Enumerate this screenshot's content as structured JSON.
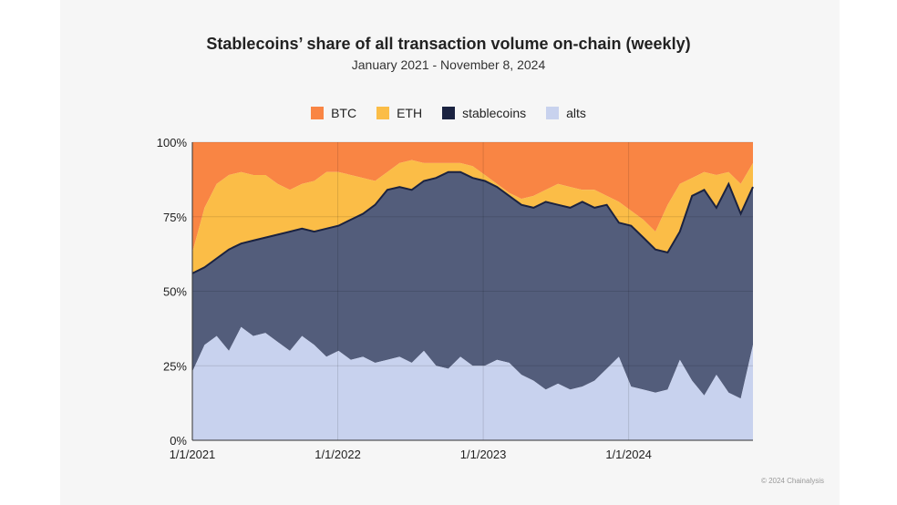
{
  "title": "Stablecoins’ share of all transaction volume on-chain (weekly)",
  "subtitle": "January 2021 - November 8, 2024",
  "credit": "© 2024 Chainalysis",
  "colors": {
    "btc": "#f98544",
    "eth": "#fbbd47",
    "stablecoins": "#535d7b",
    "stablecoins_line": "#1a2240",
    "alts": "#c8d2ee",
    "grid": "#d0d0d0"
  },
  "chart_data": {
    "type": "area",
    "stacked": true,
    "y_format": "percent",
    "ylim": [
      0,
      100
    ],
    "yticks": [
      "0%",
      "25%",
      "50%",
      "75%",
      "100%"
    ],
    "xticks": [
      "1/1/2021",
      "1/1/2022",
      "1/1/2023",
      "1/1/2024"
    ],
    "x_range": [
      "2021-01-01",
      "2024-11-08"
    ],
    "legend": "top",
    "grid": true,
    "x": [
      "2021-01",
      "2021-02",
      "2021-03",
      "2021-04",
      "2021-05",
      "2021-06",
      "2021-07",
      "2021-08",
      "2021-09",
      "2021-10",
      "2021-11",
      "2021-12",
      "2022-01",
      "2022-02",
      "2022-03",
      "2022-04",
      "2022-05",
      "2022-06",
      "2022-07",
      "2022-08",
      "2022-09",
      "2022-10",
      "2022-11",
      "2022-12",
      "2023-01",
      "2023-02",
      "2023-03",
      "2023-04",
      "2023-05",
      "2023-06",
      "2023-07",
      "2023-08",
      "2023-09",
      "2023-10",
      "2023-11",
      "2023-12",
      "2024-01",
      "2024-02",
      "2024-03",
      "2024-04",
      "2024-05",
      "2024-06",
      "2024-07",
      "2024-08",
      "2024-09",
      "2024-10",
      "2024-11"
    ],
    "series": [
      {
        "name": "alts",
        "values": [
          23,
          32,
          35,
          30,
          38,
          35,
          36,
          33,
          30,
          35,
          32,
          28,
          30,
          27,
          28,
          26,
          27,
          28,
          26,
          30,
          25,
          24,
          28,
          25,
          25,
          27,
          26,
          22,
          20,
          17,
          19,
          17,
          18,
          20,
          24,
          28,
          18,
          17,
          16,
          17,
          27,
          20,
          15,
          22,
          16,
          14,
          32
        ]
      },
      {
        "name": "stablecoins",
        "values": [
          56,
          58,
          61,
          64,
          66,
          67,
          68,
          69,
          70,
          71,
          70,
          71,
          72,
          74,
          76,
          79,
          84,
          85,
          84,
          87,
          88,
          90,
          90,
          88,
          87,
          85,
          82,
          79,
          78,
          80,
          79,
          78,
          80,
          78,
          79,
          73,
          72,
          68,
          64,
          63,
          70,
          82,
          84,
          78,
          86,
          76,
          85
        ]
      },
      {
        "name": "ETH",
        "values": [
          63,
          78,
          86,
          89,
          90,
          89,
          89,
          86,
          84,
          86,
          87,
          90,
          90,
          89,
          88,
          87,
          90,
          93,
          94,
          93,
          93,
          93,
          93,
          92,
          89,
          86,
          83,
          81,
          82,
          84,
          86,
          85,
          84,
          84,
          82,
          80,
          77,
          74,
          70,
          79,
          86,
          88,
          90,
          89,
          90,
          86,
          93
        ]
      },
      {
        "name": "BTC",
        "values": [
          100,
          100,
          100,
          100,
          100,
          100,
          100,
          100,
          100,
          100,
          100,
          100,
          100,
          100,
          100,
          100,
          100,
          100,
          100,
          100,
          100,
          100,
          100,
          100,
          100,
          100,
          100,
          100,
          100,
          100,
          100,
          100,
          100,
          100,
          100,
          100,
          100,
          100,
          100,
          100,
          100,
          100,
          100,
          100,
          100,
          100,
          100
        ]
      }
    ],
    "note_values": "Series values are cumulative stack tops (%) read from the chart: alts band 0–alts, stablecoins band alts–stablecoins, ETH band stablecoins–ETH, BTC band ETH–100."
  },
  "legend_items": [
    {
      "label": "BTC",
      "color": "#f98544"
    },
    {
      "label": "ETH",
      "color": "#fbbd47"
    },
    {
      "label": "stablecoins",
      "color": "#1a2240"
    },
    {
      "label": "alts",
      "color": "#c8d2ee"
    }
  ]
}
